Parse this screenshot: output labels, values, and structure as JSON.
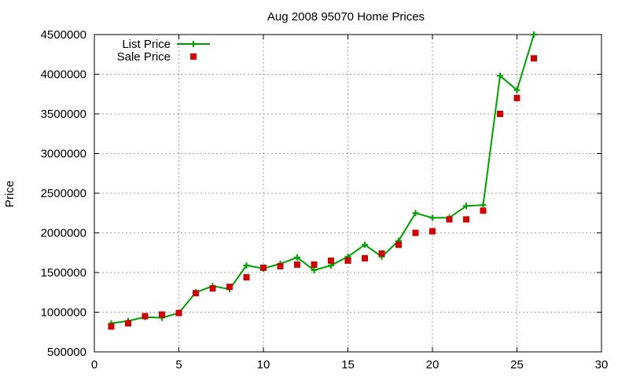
{
  "chart_data": {
    "type": "line",
    "title": "Aug 2008 95070 Home Prices",
    "xlabel": "",
    "ylabel": "Price",
    "xlim": [
      0,
      30
    ],
    "ylim": [
      500000,
      4500000
    ],
    "x_ticks": [
      0,
      5,
      10,
      15,
      20,
      25,
      30
    ],
    "y_ticks": [
      500000,
      1000000,
      1500000,
      2000000,
      2500000,
      3000000,
      3500000,
      4000000,
      4500000
    ],
    "grid": true,
    "legend_position": "top-left",
    "series": [
      {
        "name": "List Price",
        "style": "line-with-plus-markers",
        "color": "#00a000",
        "x": [
          1,
          2,
          3,
          4,
          5,
          6,
          7,
          8,
          9,
          10,
          11,
          12,
          13,
          14,
          15,
          16,
          17,
          18,
          19,
          20,
          21,
          22,
          23,
          24,
          25,
          26
        ],
        "y": [
          860000,
          890000,
          940000,
          930000,
          990000,
          1250000,
          1330000,
          1290000,
          1590000,
          1550000,
          1610000,
          1690000,
          1530000,
          1590000,
          1700000,
          1850000,
          1700000,
          1900000,
          2250000,
          2190000,
          2190000,
          2340000,
          2350000,
          3980000,
          3800000,
          4500000
        ]
      },
      {
        "name": "Sale Price",
        "style": "square-markers",
        "color": "#cc0000",
        "x": [
          1,
          2,
          3,
          4,
          5,
          6,
          7,
          8,
          9,
          10,
          11,
          12,
          13,
          14,
          15,
          16,
          17,
          18,
          19,
          20,
          21,
          22,
          23,
          24,
          25,
          26
        ],
        "y": [
          820000,
          860000,
          950000,
          970000,
          990000,
          1240000,
          1300000,
          1320000,
          1440000,
          1560000,
          1580000,
          1600000,
          1600000,
          1650000,
          1650000,
          1680000,
          1740000,
          1850000,
          2000000,
          2020000,
          2170000,
          2170000,
          2280000,
          3500000,
          3700000,
          4200000
        ]
      }
    ]
  }
}
